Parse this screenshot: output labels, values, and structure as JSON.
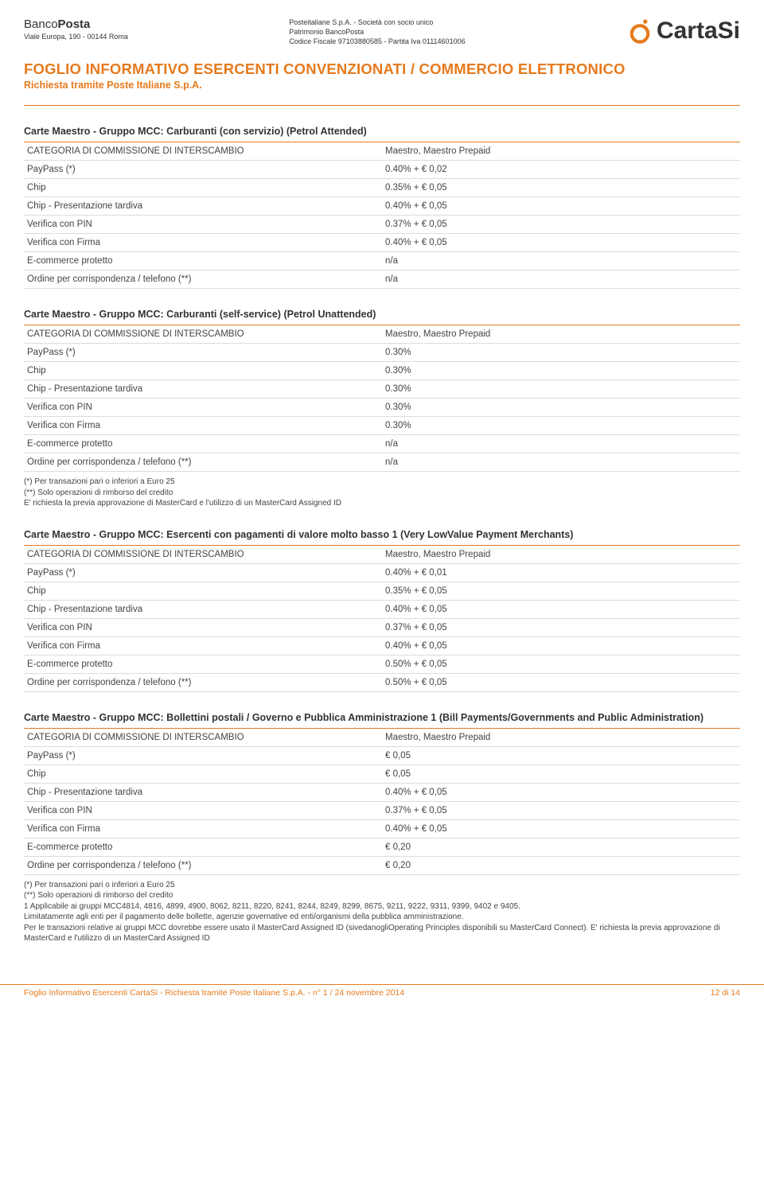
{
  "header": {
    "bp_brand_1": "Banco",
    "bp_brand_2": "Posta",
    "bp_address": "Viale Europa, 190 - 00144 Roma",
    "mid_line1": "Posteitaliane S.p.A. - Società con socio unico",
    "mid_line2": "Patrimonio BancoPosta",
    "mid_line3": "Codice Fiscale 97103880585 - Partita Iva 01114601006",
    "cartasi_label": "CartaSi"
  },
  "title": {
    "main": "FOGLIO INFORMATIVO ESERCENTI CONVENZIONATI / COMMERCIO ELETTRONICO",
    "sub": "Richiesta tramite Poste Italiane S.p.A."
  },
  "sections": [
    {
      "title": "Carte Maestro - Gruppo MCC: Carburanti (con servizio) (Petrol Attended)",
      "rows": [
        {
          "label": "CATEGORIA DI COMMISSIONE DI INTERSCAMBIO",
          "value": "Maestro, Maestro Prepaid"
        },
        {
          "label": "PayPass (*)",
          "value": "0.40% + € 0,02"
        },
        {
          "label": "Chip",
          "value": "0.35% + € 0,05"
        },
        {
          "label": "Chip - Presentazione tardiva",
          "value": "0.40% + € 0,05"
        },
        {
          "label": "Verifica con PIN",
          "value": "0.37% + € 0,05"
        },
        {
          "label": "Verifica con Firma",
          "value": "0.40% + € 0,05"
        },
        {
          "label": "E-commerce protetto",
          "value": "n/a"
        },
        {
          "label": "Ordine per corrispondenza / telefono (**)",
          "value": "n/a"
        }
      ]
    },
    {
      "title": "Carte Maestro - Gruppo MCC: Carburanti (self-service) (Petrol Unattended)",
      "rows": [
        {
          "label": "CATEGORIA DI COMMISSIONE DI INTERSCAMBIO",
          "value": "Maestro, Maestro Prepaid"
        },
        {
          "label": "PayPass (*)",
          "value": "0.30%"
        },
        {
          "label": "Chip",
          "value": "0.30%"
        },
        {
          "label": "Chip - Presentazione tardiva",
          "value": "0.30%"
        },
        {
          "label": "Verifica con PIN",
          "value": "0.30%"
        },
        {
          "label": "Verifica con Firma",
          "value": "0.30%"
        },
        {
          "label": "E-commerce protetto",
          "value": "n/a"
        },
        {
          "label": "Ordine per corrispondenza / telefono (**)",
          "value": "n/a"
        }
      ],
      "notes": [
        "(*)  Per transazioni pari o inferiori a Euro 25",
        "(**) Solo operazioni di rimborso del credito",
        "E' richiesta la previa approvazione di MasterCard e l'utilizzo di un MasterCard Assigned ID"
      ]
    },
    {
      "title": "Carte Maestro - Gruppo MCC: Esercenti con pagamenti di valore molto basso 1 (Very LowValue Payment Merchants)",
      "rows": [
        {
          "label": "CATEGORIA DI COMMISSIONE DI INTERSCAMBIO",
          "value": "Maestro, Maestro Prepaid"
        },
        {
          "label": "PayPass (*)",
          "value": "0.40% + € 0,01"
        },
        {
          "label": "Chip",
          "value": "0.35% + € 0,05"
        },
        {
          "label": "Chip - Presentazione tardiva",
          "value": "0.40% + € 0,05"
        },
        {
          "label": "Verifica con PIN",
          "value": "0.37% + € 0,05"
        },
        {
          "label": "Verifica con Firma",
          "value": "0.40% + € 0,05"
        },
        {
          "label": "E-commerce protetto",
          "value": "0.50% + € 0,05"
        },
        {
          "label": "Ordine per corrispondenza / telefono (**)",
          "value": "0.50% + € 0,05"
        }
      ]
    },
    {
      "title": "Carte Maestro - Gruppo MCC: Bollettini postali / Governo e Pubblica Amministrazione 1 (Bill Payments/Governments and Public Administration)",
      "rows": [
        {
          "label": "CATEGORIA DI COMMISSIONE DI INTERSCAMBIO",
          "value": "Maestro, Maestro Prepaid"
        },
        {
          "label": "PayPass (*)",
          "value": "€ 0,05"
        },
        {
          "label": "Chip",
          "value": "€ 0,05"
        },
        {
          "label": "Chip - Presentazione tardiva",
          "value": "0.40% + € 0,05"
        },
        {
          "label": "Verifica con PIN",
          "value": "0.37% + € 0,05"
        },
        {
          "label": "Verifica con Firma",
          "value": "0.40% + € 0,05"
        },
        {
          "label": "E-commerce protetto",
          "value": "€ 0,20"
        },
        {
          "label": "Ordine per corrispondenza / telefono (**)",
          "value": "€ 0,20"
        }
      ],
      "notes": [
        "(*)  Per transazioni pari o inferiori a Euro 25",
        "(**) Solo operazioni di rimborso del credito",
        "1 Applicabile ai gruppi MCC4814, 4816, 4899, 4900, 8062, 8211, 8220, 8241, 8244, 8249, 8299, 8675, 9211, 9222, 9311, 9399, 9402 e 9405.",
        "Limitatamente agli enti per il pagamento delle bollette, agenzie governative ed enti/organismi della pubblica amministrazione.",
        "Per le transazioni relative ai gruppi MCC dovrebbe essere usato il MasterCard Assigned ID (sivedanogliOperating Principles disponibili su MasterCard Connect). E' richiesta la previa approvazione di MasterCard e l'utilizzo di un MasterCard Assigned ID"
      ]
    }
  ],
  "footer": {
    "left": "Foglio Informativo Esercenti CartaSi - Richiesta tramite Poste Italiane S.p.A. - n° 1 / 24 novembre 2014",
    "right": "12 di 14"
  },
  "colors": {
    "accent": "#e67a1e",
    "text": "#333333",
    "rule": "#dcdcdc",
    "background": "#ffffff"
  }
}
